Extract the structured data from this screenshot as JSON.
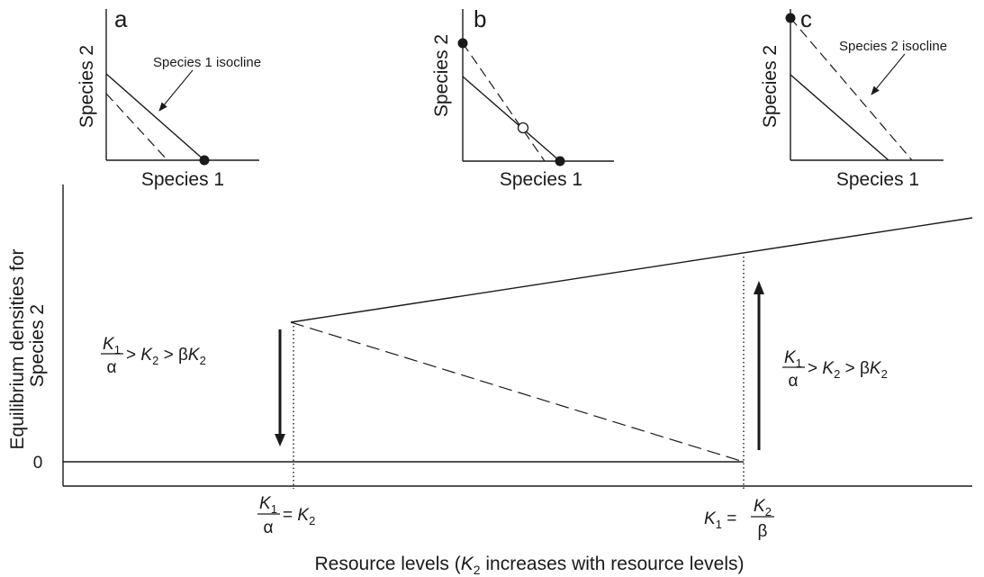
{
  "panels": [
    {
      "letter": "a",
      "xlabel": "Species 1",
      "ylabel": "Species 2",
      "annotation": "Species 1 isocline"
    },
    {
      "letter": "b",
      "xlabel": "Species 1",
      "ylabel": "Species 2"
    },
    {
      "letter": "c",
      "xlabel": "Species 1",
      "ylabel": "Species 2",
      "annotation": "Species 2 isocline"
    }
  ],
  "main": {
    "ylabel_line1": "Equilibrium densities for",
    "ylabel_line2": "Species 2",
    "zero_tick": "0",
    "xlabel_prefix": "Resource levels (",
    "xlabel_var": "K",
    "xlabel_sub": "2",
    "xlabel_suffix": " increases with resource levels)",
    "condition_left": {
      "num": "K",
      "num_sub": "1",
      "den": "α",
      "rest_a": " > ",
      "k2": "K",
      "k2_sub": "2",
      "rest_b": " > β",
      "bk": "K",
      "bk_sub": "2"
    },
    "condition_right": {
      "num": "K",
      "num_sub": "1",
      "den": "α",
      "rest_a": " > ",
      "k2": "K",
      "k2_sub": "2",
      "rest_b": " > β",
      "bk": "K",
      "bk_sub": "2"
    },
    "threshold_left": {
      "num": "K",
      "num_sub": "1",
      "den": "α",
      "eq": " = ",
      "rhs": "K",
      "rhs_sub": "2"
    },
    "threshold_right": {
      "lhs": "K",
      "lhs_sub": "1",
      "eq": " = ",
      "num": "K",
      "num_sub": "2",
      "den": "β"
    }
  }
}
